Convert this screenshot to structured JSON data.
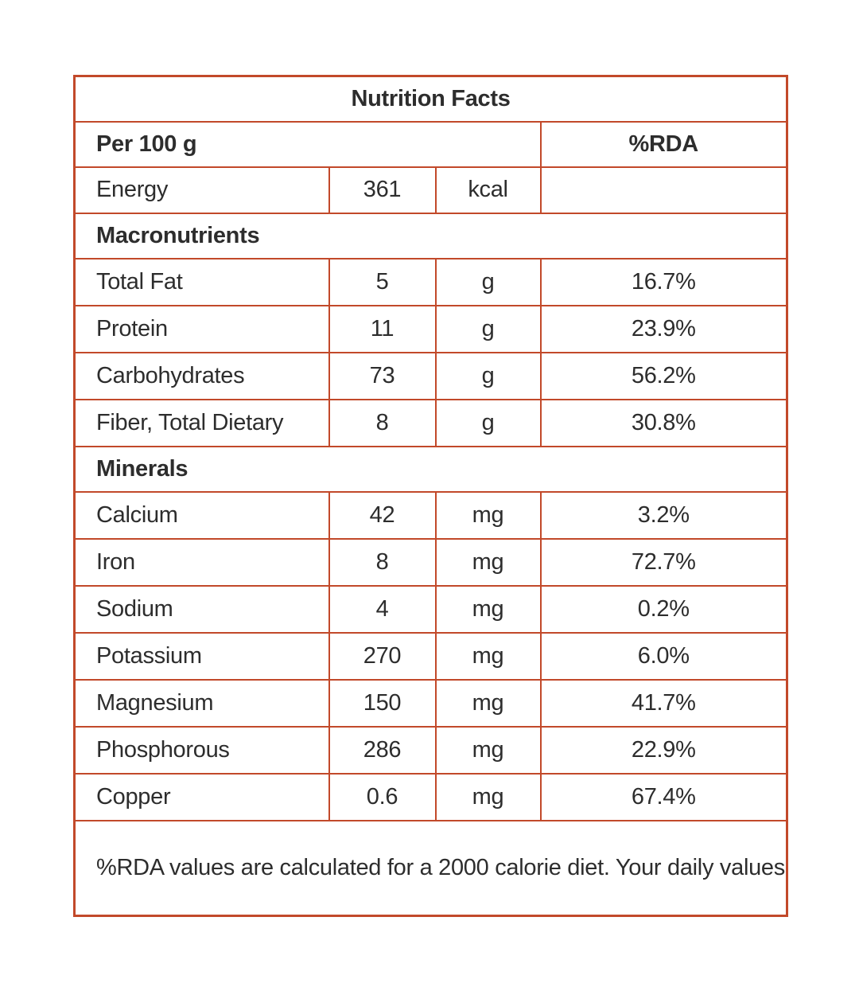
{
  "colors": {
    "border": "#c2492a",
    "text": "#2d2d2d",
    "background": "#ffffff"
  },
  "table": {
    "title": "Nutrition Facts",
    "column_header": {
      "serving": "Per 100 g",
      "rda_label": "%RDA"
    },
    "energy_row": {
      "label": "Energy",
      "value": "361",
      "unit": "kcal",
      "rda": ""
    },
    "macronutrients": {
      "section_label": "Macronutrients",
      "rows": [
        {
          "label": "Total Fat",
          "value": "5",
          "unit": "g",
          "rda": "16.7%"
        },
        {
          "label": "Protein",
          "value": "11",
          "unit": "g",
          "rda": "23.9%"
        },
        {
          "label": "Carbohydrates",
          "value": "73",
          "unit": "g",
          "rda": "56.2%"
        },
        {
          "label": "Fiber, Total Dietary",
          "value": "8",
          "unit": "g",
          "rda": "30.8%"
        }
      ]
    },
    "minerals": {
      "section_label": "Minerals",
      "rows": [
        {
          "label": "Calcium",
          "value": "42",
          "unit": "mg",
          "rda": "3.2%"
        },
        {
          "label": "Iron",
          "value": "8",
          "unit": "mg",
          "rda": "72.7%"
        },
        {
          "label": "Sodium",
          "value": "4",
          "unit": "mg",
          "rda": "0.2%"
        },
        {
          "label": "Potassium",
          "value": "270",
          "unit": "mg",
          "rda": "6.0%"
        },
        {
          "label": "Magnesium",
          "value": "150",
          "unit": "mg",
          "rda": "41.7%"
        },
        {
          "label": "Phosphorous",
          "value": "286",
          "unit": "mg",
          "rda": "22.9%"
        },
        {
          "label": "Copper",
          "value": "0.6",
          "unit": "mg",
          "rda": "67.4%"
        }
      ]
    },
    "footnote": "%RDA values are calculated for a 2000 calorie diet. Your daily values may vary depending on your calorie needs"
  }
}
